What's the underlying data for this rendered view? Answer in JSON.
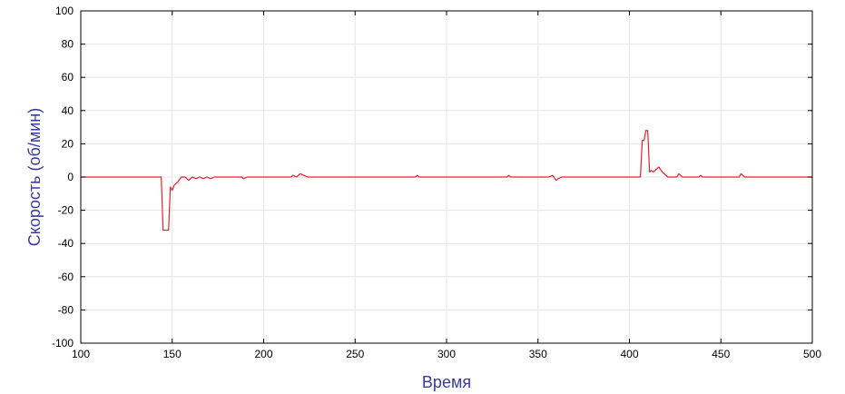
{
  "chart_data": {
    "type": "line",
    "title": "",
    "xlabel": "Время",
    "ylabel": "Скорость (об/мин)",
    "xlim": [
      100,
      500
    ],
    "ylim": [
      -100,
      100
    ],
    "xticks": [
      100,
      150,
      200,
      250,
      300,
      350,
      400,
      450,
      500
    ],
    "yticks": [
      -100,
      -80,
      -60,
      -40,
      -20,
      0,
      20,
      40,
      60,
      80,
      100
    ],
    "grid": true,
    "colors": {
      "line": "#e8202a",
      "grid": "#e6e6e6",
      "axis": "#000000",
      "label": "#3a3a9a"
    },
    "series": [
      {
        "values": [
          [
            100,
            0
          ],
          [
            144,
            0
          ],
          [
            145,
            -32
          ],
          [
            148,
            -32
          ],
          [
            149,
            -6
          ],
          [
            150,
            -8
          ],
          [
            151,
            -5
          ],
          [
            153,
            -3
          ],
          [
            155,
            0
          ],
          [
            157,
            0
          ],
          [
            159,
            -2
          ],
          [
            161,
            0
          ],
          [
            163,
            -1
          ],
          [
            165,
            0
          ],
          [
            167,
            -1
          ],
          [
            169,
            0
          ],
          [
            171,
            -1
          ],
          [
            173,
            0
          ],
          [
            188,
            0
          ],
          [
            189,
            -1
          ],
          [
            191,
            0
          ],
          [
            215,
            0
          ],
          [
            216,
            1
          ],
          [
            218,
            0
          ],
          [
            220,
            2
          ],
          [
            222,
            1
          ],
          [
            224,
            0
          ],
          [
            283,
            0
          ],
          [
            284,
            1
          ],
          [
            285,
            0
          ],
          [
            333,
            0
          ],
          [
            334,
            1
          ],
          [
            335,
            0
          ],
          [
            356,
            0
          ],
          [
            358,
            1
          ],
          [
            360,
            -2
          ],
          [
            361,
            -1
          ],
          [
            363,
            0
          ],
          [
            406,
            0
          ],
          [
            407,
            22
          ],
          [
            408,
            22
          ],
          [
            409,
            28
          ],
          [
            410,
            28
          ],
          [
            411,
            3
          ],
          [
            412,
            4
          ],
          [
            413,
            3
          ],
          [
            415,
            5
          ],
          [
            416,
            6
          ],
          [
            418,
            3
          ],
          [
            419,
            2
          ],
          [
            421,
            0
          ],
          [
            426,
            0
          ],
          [
            427,
            2
          ],
          [
            429,
            0
          ],
          [
            438,
            0
          ],
          [
            439,
            1
          ],
          [
            440,
            0
          ],
          [
            460,
            0
          ],
          [
            461,
            2
          ],
          [
            463,
            0
          ],
          [
            500,
            0
          ]
        ]
      }
    ]
  }
}
